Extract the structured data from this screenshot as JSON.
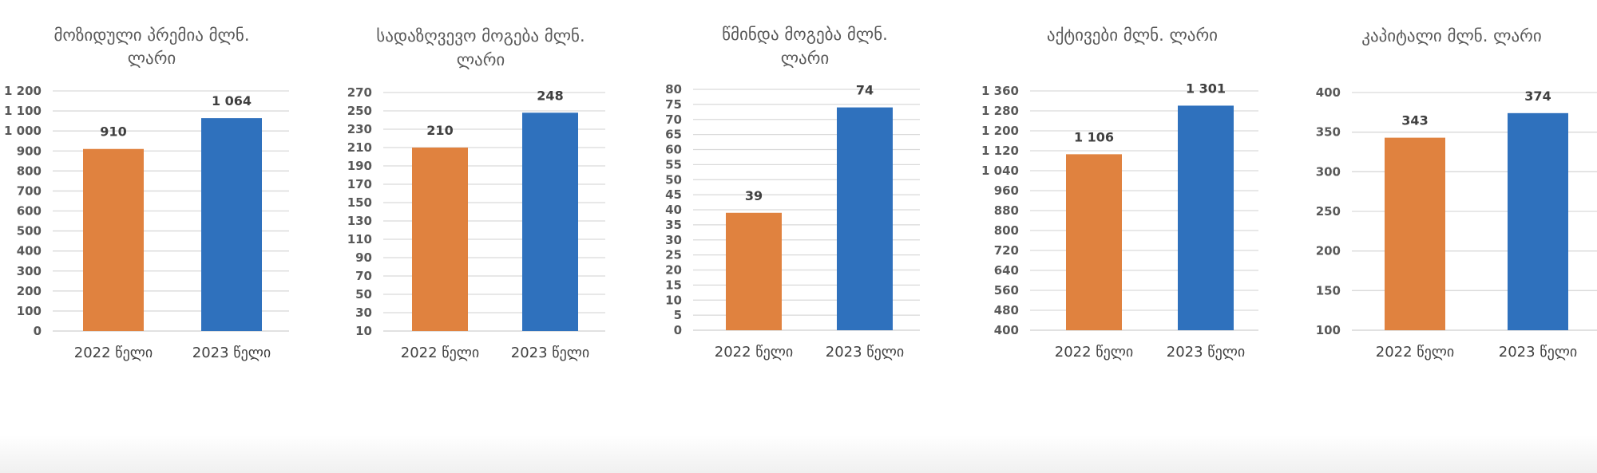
{
  "colors": {
    "bar_2022": "#E0823F",
    "bar_2023": "#2F71BD"
  },
  "chart_data": [
    {
      "type": "bar",
      "title": "მოზიდული პრემია მლნ. ლარი",
      "title_lines": [
        "მოზიდული პრემია მლნ.",
        "ლარი"
      ],
      "categories": [
        "2022 წელი",
        "2023 წელი"
      ],
      "values": [
        910,
        1064
      ],
      "value_labels": [
        "910",
        "1 064"
      ],
      "yticks": [
        0,
        100,
        200,
        300,
        400,
        500,
        600,
        700,
        800,
        900,
        1000,
        1100,
        1200
      ],
      "ytick_labels": [
        "0",
        "100",
        "200",
        "300",
        "400",
        "500",
        "600",
        "700",
        "800",
        "900",
        "1 000",
        "1 100",
        "1 200"
      ],
      "ylim": [
        0,
        1200
      ],
      "grid": true
    },
    {
      "type": "bar",
      "title": "სადაზღვევო მოგება მლნ. ლარი",
      "title_lines": [
        "სადაზღვევო მოგება მლნ.",
        "ლარი"
      ],
      "categories": [
        "2022 წელი",
        "2023 წელი"
      ],
      "values": [
        210,
        248
      ],
      "value_labels": [
        "210",
        "248"
      ],
      "yticks": [
        10,
        30,
        50,
        70,
        90,
        110,
        130,
        150,
        170,
        190,
        210,
        230,
        250,
        270
      ],
      "ytick_labels": [
        "10",
        "30",
        "50",
        "70",
        "90",
        "110",
        "130",
        "150",
        "170",
        "190",
        "210",
        "230",
        "250",
        "270"
      ],
      "ylim": [
        10,
        270
      ],
      "grid": true
    },
    {
      "type": "bar",
      "title": "წმინდა მოგება მლნ. ლარი",
      "title_lines": [
        "წმინდა მოგება მლნ.",
        "ლარი"
      ],
      "categories": [
        "2022 წელი",
        "2023 წელი"
      ],
      "values": [
        39,
        74
      ],
      "value_labels": [
        "39",
        "74"
      ],
      "yticks": [
        0,
        5,
        10,
        15,
        20,
        25,
        30,
        35,
        40,
        45,
        50,
        55,
        60,
        65,
        70,
        75,
        80
      ],
      "ytick_labels": [
        "0",
        "5",
        "10",
        "15",
        "20",
        "25",
        "30",
        "35",
        "40",
        "45",
        "50",
        "55",
        "60",
        "65",
        "70",
        "75",
        "80"
      ],
      "ylim": [
        0,
        80
      ],
      "grid": true
    },
    {
      "type": "bar",
      "title": "აქტივები მლნ. ლარი",
      "title_lines": [
        "აქტივები მლნ. ლარი"
      ],
      "categories": [
        "2022 წელი",
        "2023 წელი"
      ],
      "values": [
        1106,
        1301
      ],
      "value_labels": [
        "1 106",
        "1 301"
      ],
      "yticks": [
        400,
        480,
        560,
        640,
        720,
        800,
        880,
        960,
        1040,
        1120,
        1200,
        1280,
        1360
      ],
      "ytick_labels": [
        "400",
        "480",
        "560",
        "640",
        "720",
        "800",
        "880",
        "960",
        "1 040",
        "1 120",
        "1 200",
        "1 280",
        "1 360"
      ],
      "ylim": [
        400,
        1360
      ],
      "grid": true
    },
    {
      "type": "bar",
      "title": "კაპიტალი მლნ. ლარი",
      "title_lines": [
        "კაპიტალი მლნ. ლარი"
      ],
      "categories": [
        "2022 წელი",
        "2023 წელი"
      ],
      "values": [
        343,
        374
      ],
      "value_labels": [
        "343",
        "374"
      ],
      "yticks": [
        100,
        150,
        200,
        250,
        300,
        350,
        400
      ],
      "ytick_labels": [
        "100",
        "150",
        "200",
        "250",
        "300",
        "350",
        "400"
      ],
      "ylim": [
        100,
        400
      ],
      "grid": true
    }
  ]
}
